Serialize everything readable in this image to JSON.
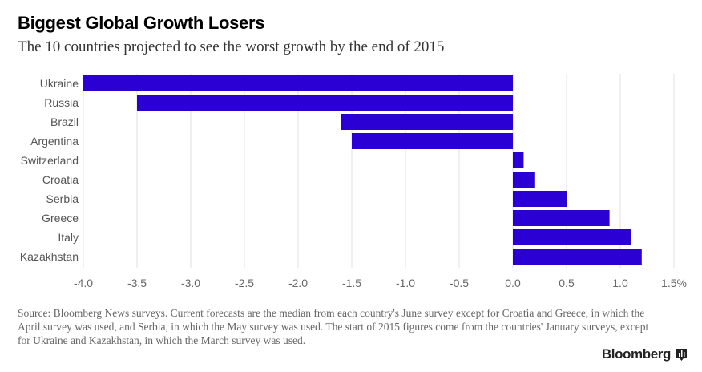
{
  "title": "Biggest Global Growth Losers",
  "subtitle": "The 10 countries projected to see the worst growth by the end of 2015",
  "source": "Source: Bloomberg News surveys. Current forecasts are the median from each country's June survey except for Croatia and Greece, in which the April survey was used, and Serbia, in which the May survey was used. The start of 2015 figures come from the countries' January surveys, except for Ukraine and Kazakhstan, in which the March survey was used.",
  "logo": "Bloomberg",
  "colors": {
    "bar": "#2a00d5",
    "grid": "#e2e2e2",
    "tick_text": "#666666"
  },
  "chart_data": {
    "type": "bar",
    "orientation": "horizontal",
    "categories": [
      "Ukraine",
      "Russia",
      "Brazil",
      "Argentina",
      "Switzerland",
      "Croatia",
      "Serbia",
      "Greece",
      "Italy",
      "Kazakhstan"
    ],
    "values": [
      -4.0,
      -3.5,
      -1.6,
      -1.5,
      0.1,
      0.2,
      0.5,
      0.9,
      1.1,
      1.2
    ],
    "xlim": [
      -4.0,
      1.5
    ],
    "xticks": [
      -4.0,
      -3.5,
      -3.0,
      -2.5,
      -2.0,
      -1.5,
      -1.0,
      -0.5,
      0.0,
      0.5,
      1.0,
      1.5
    ],
    "xtick_labels": [
      "-4.0",
      "-3.5",
      "-3.0",
      "-2.5",
      "-2.0",
      "-1.5",
      "-1.0",
      "-0.5",
      "0.0",
      "0.5",
      "1.0",
      "1.5%"
    ],
    "grid": true
  }
}
